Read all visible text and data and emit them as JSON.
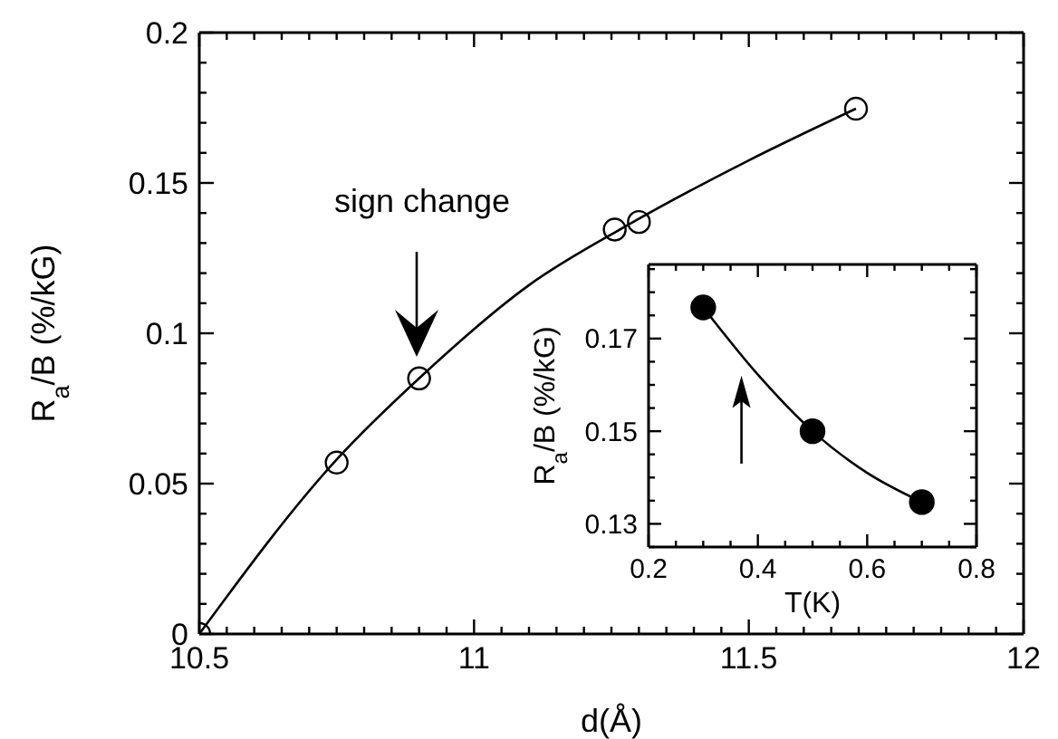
{
  "chart_data": [
    {
      "type": "scatter",
      "xlabel": "d(Å)",
      "ylabel": "R$_{a}$/B (%/kG)",
      "xlim": [
        10.5,
        12
      ],
      "ylim": [
        0,
        0.2
      ],
      "xticks": [
        10.5,
        {
          "value": 10.55,
          "label": null
        },
        {
          "value": 10.6,
          "label": null
        },
        {
          "value": 10.65,
          "label": null
        },
        {
          "value": 10.7,
          "label": null
        },
        {
          "value": 10.75,
          "label": null
        },
        {
          "value": 10.8,
          "label": null
        },
        {
          "value": 10.85,
          "label": null
        },
        {
          "value": 10.9,
          "label": null
        },
        {
          "value": 10.95,
          "label": null
        },
        11,
        {
          "value": 11.05,
          "label": null
        },
        {
          "value": 11.1,
          "label": null
        },
        {
          "value": 11.15,
          "label": null
        },
        {
          "value": 11.2,
          "label": null
        },
        {
          "value": 11.25,
          "label": null
        },
        {
          "value": 11.3,
          "label": null
        },
        {
          "value": 11.35,
          "label": null
        },
        {
          "value": 11.4,
          "label": null
        },
        {
          "value": 11.45,
          "label": null
        },
        11.5,
        {
          "value": 11.55,
          "label": null
        },
        {
          "value": 11.6,
          "label": null
        },
        {
          "value": 11.65,
          "label": null
        },
        {
          "value": 11.7,
          "label": null
        },
        {
          "value": 11.75,
          "label": null
        },
        {
          "value": 11.8,
          "label": null
        },
        {
          "value": 11.85,
          "label": null
        },
        {
          "value": 11.9,
          "label": null
        },
        {
          "value": 11.95,
          "label": null
        },
        12
      ],
      "yticks": [
        0,
        {
          "value": 0.01,
          "label": null
        },
        {
          "value": 0.02,
          "label": null
        },
        {
          "value": 0.03,
          "label": null
        },
        {
          "value": 0.04,
          "label": null
        },
        0.05,
        {
          "value": 0.06,
          "label": null
        },
        {
          "value": 0.07,
          "label": null
        },
        {
          "value": 0.08,
          "label": null
        },
        {
          "value": 0.09,
          "label": null
        },
        0.1,
        {
          "value": 0.11,
          "label": null
        },
        {
          "value": 0.12,
          "label": null
        },
        {
          "value": 0.13,
          "label": null
        },
        {
          "value": 0.14,
          "label": null
        },
        0.15,
        {
          "value": 0.16,
          "label": null
        },
        {
          "value": 0.17,
          "label": null
        },
        {
          "value": 0.18,
          "label": null
        },
        {
          "value": 0.19,
          "label": null
        },
        0.2
      ],
      "series": [
        {
          "marker": "circle",
          "color": "#000000",
          "x": [
            10.5,
            10.75,
            10.9,
            11.256,
            11.3,
            11.695
          ],
          "values": [
            0,
            0.057,
            0.085,
            0.1345,
            0.137,
            0.1747
          ]
        },
        {
          "type": "line",
          "marker": "none",
          "color": "#000000",
          "x": [
            10.5,
            10.75,
            10.9,
            11.1,
            11.28,
            11.5,
            11.695
          ],
          "values": [
            0,
            0.058,
            0.085,
            0.116,
            0.136,
            0.1575,
            0.1747
          ]
        }
      ],
      "annotations": [
        "sign change"
      ]
    },
    {
      "type": "scatter",
      "xlabel": "T(K)",
      "ylabel": "R$_{a}$/B (%/kG)",
      "xlim": [
        0.2,
        0.8
      ],
      "ylim": [
        0.125,
        0.186
      ],
      "xticks": [
        0.2,
        {
          "value": 0.25,
          "label": null
        },
        {
          "value": 0.3,
          "label": null
        },
        {
          "value": 0.35,
          "label": null
        },
        0.4,
        {
          "value": 0.45,
          "label": null
        },
        {
          "value": 0.5,
          "label": null
        },
        {
          "value": 0.55,
          "label": null
        },
        0.6,
        {
          "value": 0.65,
          "label": null
        },
        {
          "value": 0.7,
          "label": null
        },
        {
          "value": 0.75,
          "label": null
        },
        0.8
      ],
      "yticks": [
        {
          "value": 0.125,
          "label": null
        },
        0.13,
        {
          "value": 0.135,
          "label": null
        },
        {
          "value": 0.14,
          "label": null
        },
        {
          "value": 0.145,
          "label": null
        },
        0.15,
        {
          "value": 0.155,
          "label": null
        },
        {
          "value": 0.16,
          "label": null
        },
        {
          "value": 0.165,
          "label": null
        },
        0.17,
        {
          "value": 0.175,
          "label": null
        },
        {
          "value": 0.18,
          "label": null
        },
        {
          "value": 0.185,
          "label": null
        }
      ],
      "series": [
        {
          "marker": "circle",
          "color": "#000000",
          "x": [
            0.3,
            0.5,
            0.7
          ],
          "values": [
            0.1767,
            0.15,
            0.1347
          ]
        },
        {
          "type": "line",
          "marker": "none",
          "color": "#000000",
          "x": [
            0.3,
            0.4,
            0.5,
            0.6,
            0.7
          ],
          "values": [
            0.1767,
            0.1622,
            0.15,
            0.141,
            0.1347
          ]
        }
      ]
    }
  ]
}
